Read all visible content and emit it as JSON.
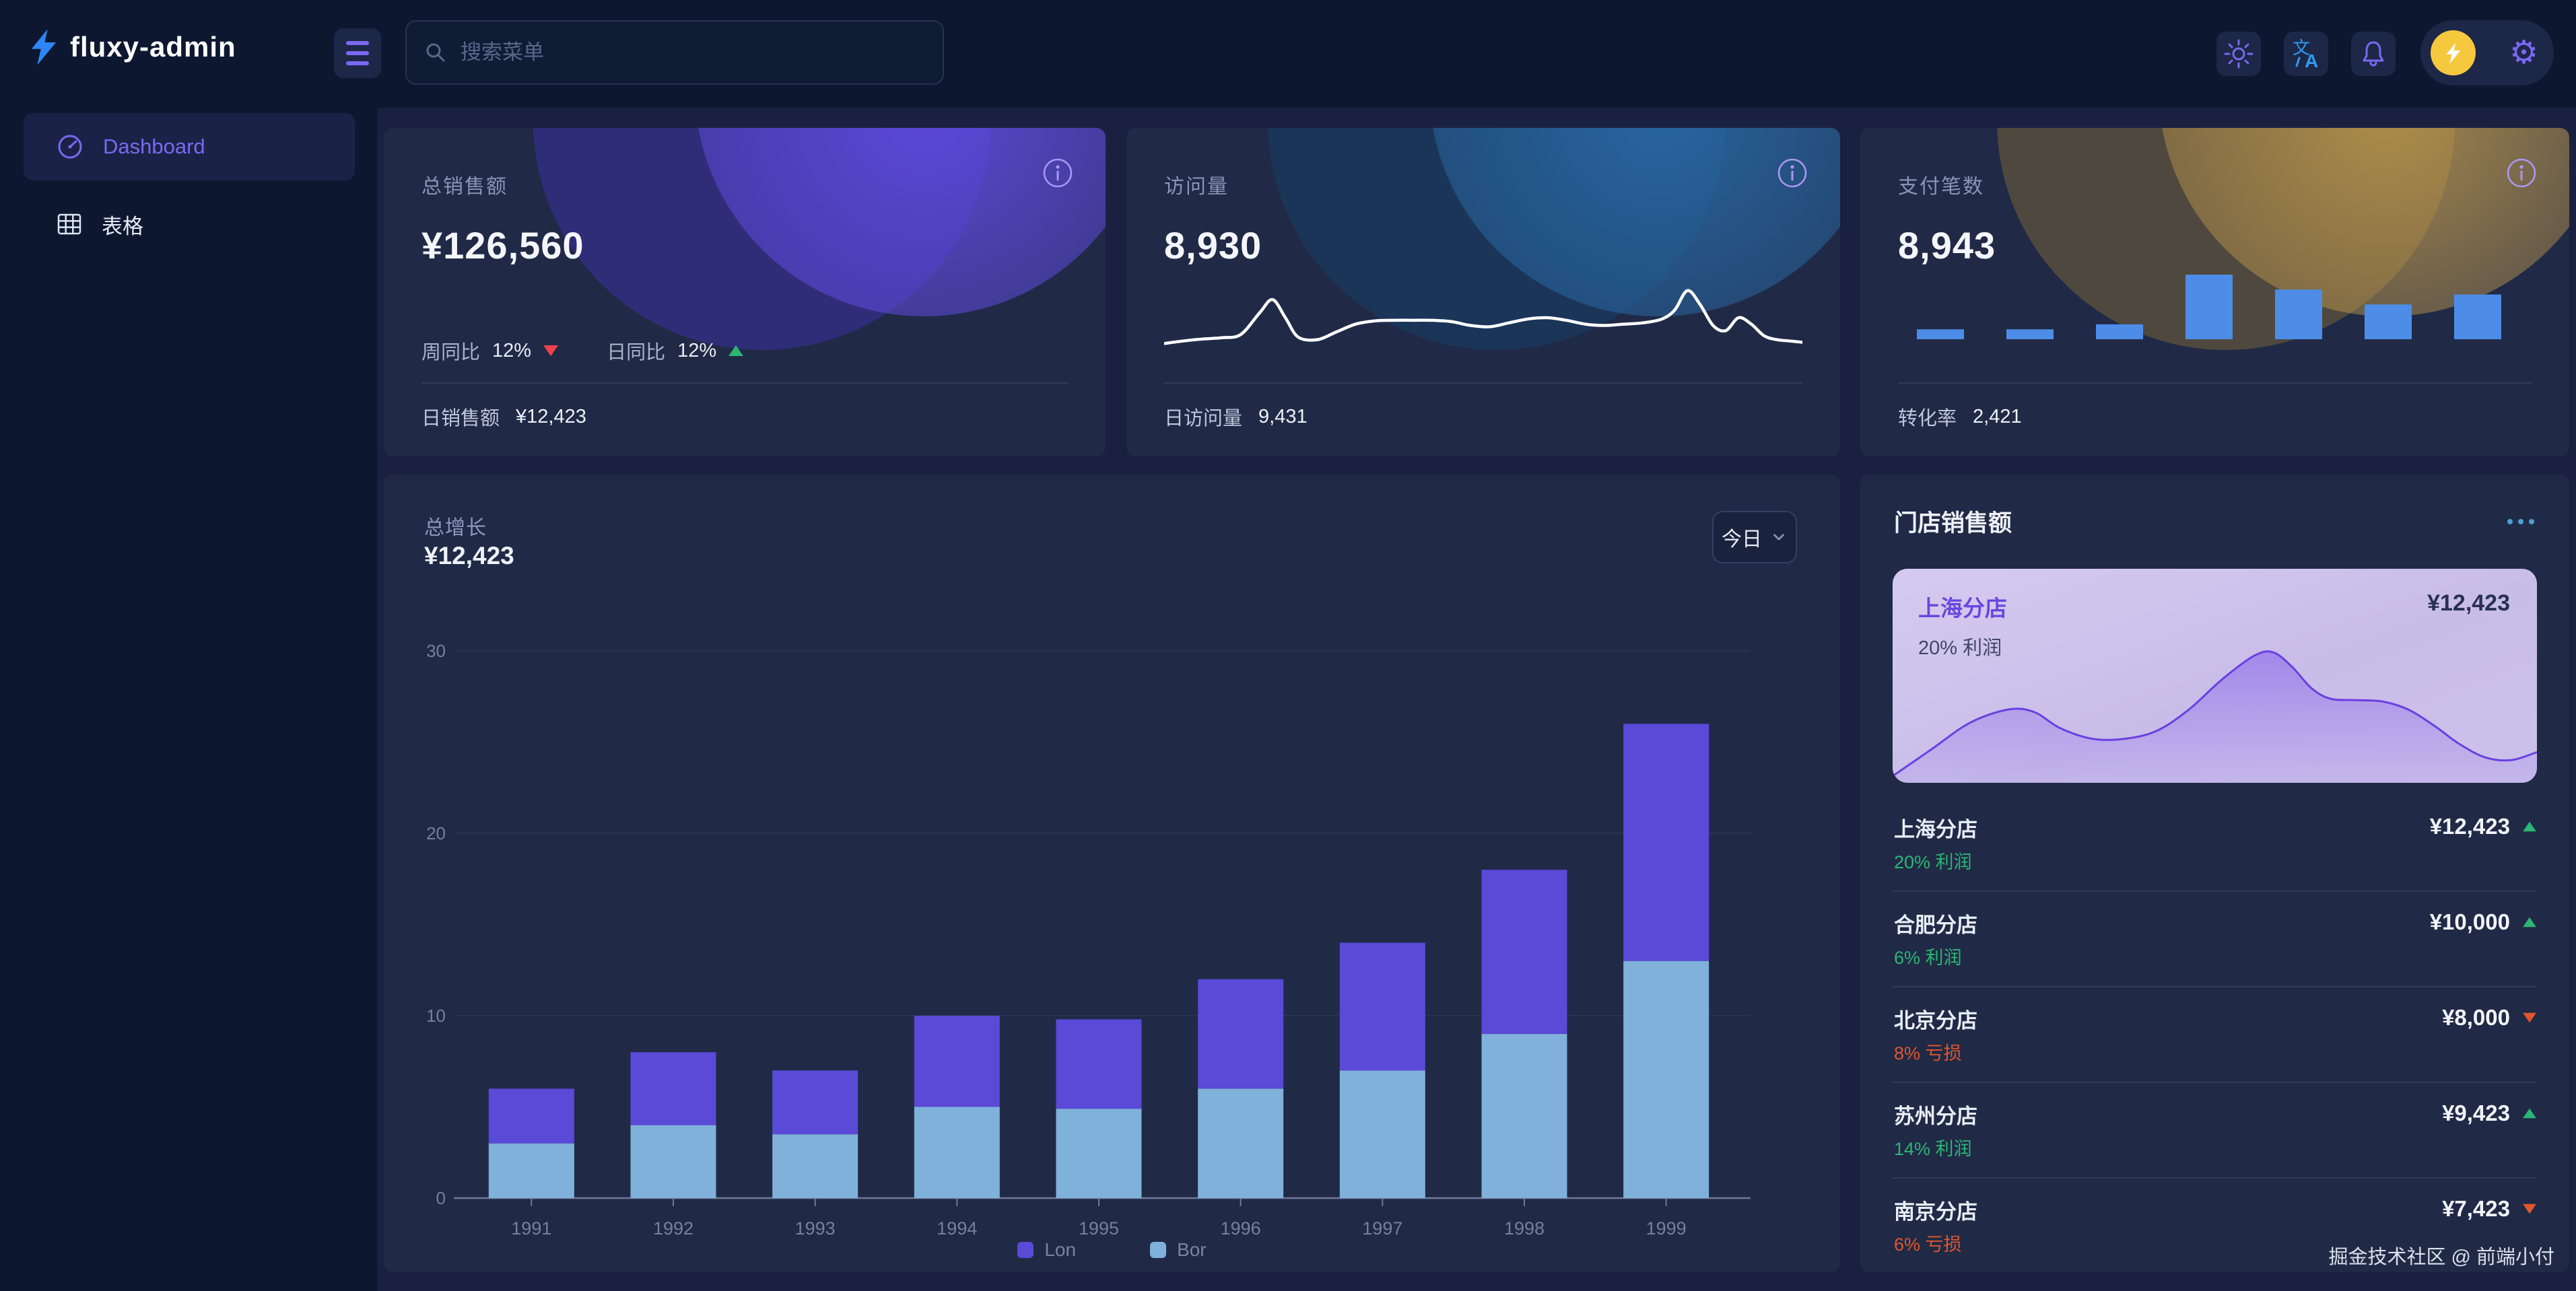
{
  "brand": {
    "name": "fluxy-admin"
  },
  "header": {
    "search_placeholder": "搜索菜单"
  },
  "sidebar": {
    "items": [
      {
        "label": "Dashboard",
        "active": true
      },
      {
        "label": "表格",
        "active": false
      }
    ]
  },
  "stat_cards": {
    "sales": {
      "title": "总销售额",
      "value": "¥126,560",
      "metrics": [
        {
          "label": "周同比",
          "value": "12%",
          "trend": "down"
        },
        {
          "label": "日同比",
          "value": "12%",
          "trend": "up"
        }
      ],
      "footer_label": "日销售额",
      "footer_value": "¥12,423"
    },
    "visits": {
      "title": "访问量",
      "value": "8,930",
      "footer_label": "日访问量",
      "footer_value": "9,431"
    },
    "payments": {
      "title": "支付笔数",
      "value": "8,943",
      "footer_label": "转化率",
      "footer_value": "2,421"
    }
  },
  "growth": {
    "title": "总增长",
    "value": "¥12,423",
    "range_label": "今日"
  },
  "store_sales": {
    "title": "门店销售额",
    "featured": {
      "name": "上海分店",
      "value": "¥12,423",
      "note": "20% 利润"
    },
    "items": [
      {
        "name": "上海分店",
        "value": "¥12,423",
        "trend": "up",
        "note": "20% 利润"
      },
      {
        "name": "合肥分店",
        "value": "¥10,000",
        "trend": "up",
        "note": "6% 利润"
      },
      {
        "name": "北京分店",
        "value": "¥8,000",
        "trend": "down",
        "note": "8% 亏损"
      },
      {
        "name": "苏州分店",
        "value": "¥9,423",
        "trend": "up",
        "note": "14% 利润"
      },
      {
        "name": "南京分店",
        "value": "¥7,423",
        "trend": "down",
        "note": "6% 亏损"
      }
    ]
  },
  "watermark": "掘金技术社区 @ 前端小付",
  "colors": {
    "accent_purple": "#7b68f2",
    "accent_blue": "#2e9cf2",
    "up_green": "#2bb673",
    "down_red": "#f0414e",
    "down_orange": "#e2562b",
    "avatar_yellow": "#f6c83e"
  },
  "chart_data": [
    {
      "id": "visits_sparkline",
      "type": "line",
      "title": "访问量",
      "color": "#ffffff",
      "points": [
        [
          0,
          10
        ],
        [
          3,
          14
        ],
        [
          6,
          17
        ],
        [
          9,
          19
        ],
        [
          12,
          24
        ],
        [
          15,
          58
        ],
        [
          17,
          78
        ],
        [
          19,
          50
        ],
        [
          21,
          20
        ],
        [
          24,
          16
        ],
        [
          27,
          28
        ],
        [
          30,
          40
        ],
        [
          33,
          45
        ],
        [
          36,
          46
        ],
        [
          39,
          46
        ],
        [
          42,
          46
        ],
        [
          45,
          44
        ],
        [
          48,
          38
        ],
        [
          51,
          36
        ],
        [
          54,
          42
        ],
        [
          57,
          48
        ],
        [
          60,
          50
        ],
        [
          63,
          46
        ],
        [
          66,
          40
        ],
        [
          69,
          38
        ],
        [
          72,
          40
        ],
        [
          75,
          42
        ],
        [
          78,
          48
        ],
        [
          80,
          62
        ],
        [
          82,
          92
        ],
        [
          84,
          70
        ],
        [
          86,
          38
        ],
        [
          88,
          30
        ],
        [
          90,
          50
        ],
        [
          92,
          40
        ],
        [
          94,
          22
        ],
        [
          96,
          16
        ],
        [
          98,
          14
        ],
        [
          100,
          12
        ]
      ]
    },
    {
      "id": "payments_bars",
      "type": "bar",
      "title": "支付笔数",
      "color": "#4d8de8",
      "values": [
        2,
        2,
        3,
        13,
        10,
        7,
        9
      ],
      "ymax": 13
    },
    {
      "id": "growth_stacked",
      "type": "bar",
      "stacked": true,
      "title": "总增长",
      "categories": [
        "1991",
        "1992",
        "1993",
        "1994",
        "1995",
        "1996",
        "1997",
        "1998",
        "1999"
      ],
      "series": [
        {
          "name": "Lon",
          "color": "#5b49d8",
          "values": [
            3,
            4,
            3.5,
            5,
            4.9,
            6,
            7,
            9,
            13
          ]
        },
        {
          "name": "Bor",
          "color": "#7fb1da",
          "values": [
            3,
            4,
            3.5,
            5,
            4.9,
            6,
            7,
            9,
            13
          ]
        }
      ],
      "ylim": [
        0,
        30
      ],
      "yticks": [
        0,
        10,
        20,
        30
      ],
      "grid": true,
      "legend_position": "bottom"
    },
    {
      "id": "store_area",
      "type": "area",
      "title": "上海分店",
      "color": "#6a3fe0",
      "points": [
        [
          0,
          2
        ],
        [
          6,
          22
        ],
        [
          12,
          42
        ],
        [
          18,
          52
        ],
        [
          22,
          50
        ],
        [
          26,
          38
        ],
        [
          31,
          30
        ],
        [
          36,
          30
        ],
        [
          41,
          36
        ],
        [
          46,
          52
        ],
        [
          51,
          74
        ],
        [
          56,
          92
        ],
        [
          59,
          95
        ],
        [
          62,
          84
        ],
        [
          65,
          68
        ],
        [
          68,
          60
        ],
        [
          72,
          59
        ],
        [
          76,
          58
        ],
        [
          80,
          52
        ],
        [
          84,
          40
        ],
        [
          88,
          26
        ],
        [
          92,
          16
        ],
        [
          96,
          14
        ],
        [
          100,
          20
        ]
      ]
    }
  ]
}
